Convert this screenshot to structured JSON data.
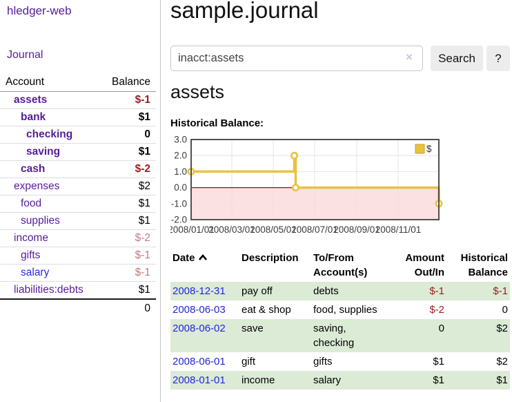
{
  "app": {
    "brand": "hledger-web",
    "nav_journal": "Journal"
  },
  "sidebar": {
    "header": {
      "account": "Account",
      "balance": "Balance"
    },
    "accounts": [
      {
        "name": "assets",
        "level": 1,
        "active": true,
        "balance": "$-1"
      },
      {
        "name": "bank",
        "level": 2,
        "active": true,
        "balance": "$1"
      },
      {
        "name": "checking",
        "level": 3,
        "active": true,
        "balance": "0"
      },
      {
        "name": "saving",
        "level": 3,
        "active": true,
        "balance": "$1"
      },
      {
        "name": "cash",
        "level": 2,
        "active": true,
        "balance": "$-2"
      },
      {
        "name": "expenses",
        "level": 1,
        "active": false,
        "balance": "$2"
      },
      {
        "name": "food",
        "level": 2,
        "active": false,
        "balance": "$1"
      },
      {
        "name": "supplies",
        "level": 2,
        "active": false,
        "balance": "$1"
      },
      {
        "name": "income",
        "level": 1,
        "active": false,
        "balance": "$-2"
      },
      {
        "name": "gifts",
        "level": 2,
        "active": false,
        "balance": "$-1"
      },
      {
        "name": "salary",
        "level": 2,
        "active": false,
        "visited": true,
        "balance": "$-1"
      },
      {
        "name": "liabilities:debts",
        "level": 1,
        "active": false,
        "balance": "$1"
      }
    ],
    "total": "0"
  },
  "header": {
    "title": "sample.journal"
  },
  "search": {
    "value": "inacct:assets",
    "clear_icon": "×",
    "button": "Search",
    "help": "?"
  },
  "account_page": {
    "title": "assets",
    "chart_label": "Historical Balance:"
  },
  "chart_data": {
    "type": "line",
    "title": "Historical Balance",
    "step": true,
    "series": [
      {
        "name": "$",
        "color": "#e9c240",
        "points": [
          [
            "2008-01-01",
            1
          ],
          [
            "2008-06-01",
            2
          ],
          [
            "2008-06-03",
            0
          ],
          [
            "2008-12-31",
            -1
          ]
        ]
      }
    ],
    "x_ticks": [
      "2008/01/01",
      "2008/03/01",
      "2008/05/01",
      "2008/07/01",
      "2008/09/01",
      "2008/11/01"
    ],
    "y_ticks": [
      3.0,
      2.0,
      1.0,
      0.0,
      -1.0,
      -2.0
    ],
    "xlim": [
      "2008-01-01",
      "2008-12-31"
    ],
    "ylim": [
      -2,
      3
    ],
    "grid": true,
    "legend_position": "top-right",
    "negative_region_color": "#fadada",
    "zero_line_color": "#8b0f0f"
  },
  "register": {
    "columns": [
      {
        "label": "Date",
        "sort": "asc"
      },
      {
        "label": "Description"
      },
      {
        "label": "To/From Account(s)"
      },
      {
        "label": "Amount Out/In"
      },
      {
        "label": "Historical Balance"
      }
    ],
    "rows": [
      {
        "date": "2008-12-31",
        "description": "pay off",
        "accounts": "debts",
        "amount": "$-1",
        "balance": "$-1"
      },
      {
        "date": "2008-06-03",
        "description": "eat & shop",
        "accounts": "food, supplies",
        "amount": "$-2",
        "balance": "0"
      },
      {
        "date": "2008-06-02",
        "description": "save",
        "accounts": "saving, checking",
        "amount": "0",
        "balance": "$2"
      },
      {
        "date": "2008-06-01",
        "description": "gift",
        "accounts": "gifts",
        "amount": "$1",
        "balance": "$2"
      },
      {
        "date": "2008-01-01",
        "description": "income",
        "accounts": "salary",
        "amount": "$1",
        "balance": "$1"
      }
    ]
  }
}
